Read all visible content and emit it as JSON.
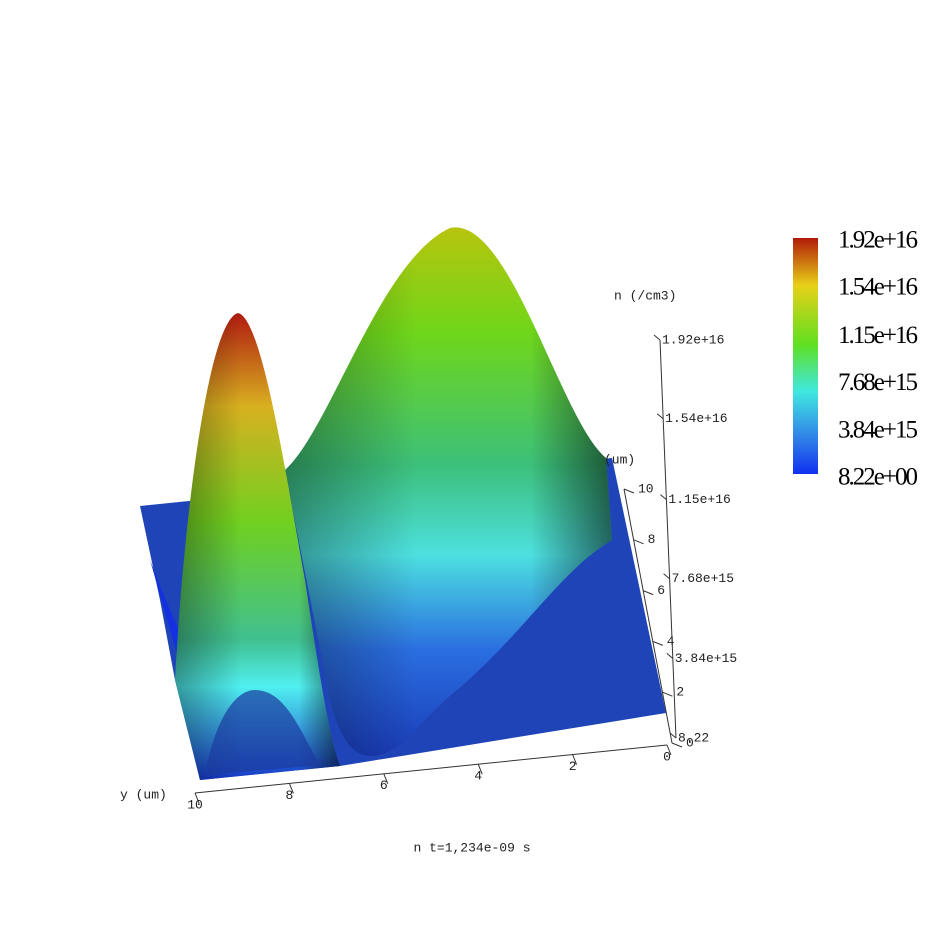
{
  "chart_data": {
    "type": "surface",
    "title": "n t=1,234e-09 s",
    "zlabel": "n (/cm3)",
    "ylabel": "y (um)",
    "xlabel": "(um)",
    "ylim": [
      10,
      0
    ],
    "yticks": [
      10,
      8,
      6,
      4,
      2,
      0
    ],
    "xlim": [
      0,
      10
    ],
    "xticks": [
      0,
      2,
      4,
      6,
      8,
      10
    ],
    "zlim": [
      8.22,
      1.92e+16
    ],
    "zticks": [
      {
        "value": 8.22,
        "label": "8.22"
      },
      {
        "value": 3840000000000000.0,
        "label": "3.84e+15"
      },
      {
        "value": 7680000000000000.0,
        "label": "7.68e+15"
      },
      {
        "value": 1.15e+16,
        "label": "1.15e+16"
      },
      {
        "value": 1.54e+16,
        "label": "1.54e+16"
      },
      {
        "value": 1.92e+16,
        "label": "1.92e+16"
      }
    ],
    "colorbar": {
      "lim": [
        8.22,
        1.92e+16
      ],
      "ticks": [
        {
          "value": 8.22,
          "label": "8.22e+00"
        },
        {
          "value": 3840000000000000.0,
          "label": "3.84e+15"
        },
        {
          "value": 7680000000000000.0,
          "label": "7.68e+15"
        },
        {
          "value": 1.15e+16,
          "label": "1.15e+16"
        },
        {
          "value": 1.54e+16,
          "label": "1.54e+16"
        },
        {
          "value": 1.92e+16,
          "label": "1.92e+16"
        }
      ]
    }
  }
}
